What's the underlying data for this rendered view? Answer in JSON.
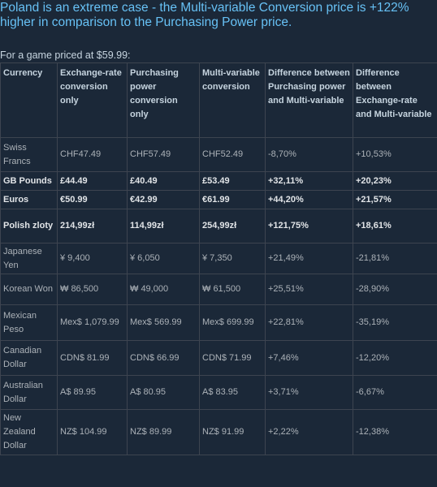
{
  "headline": "Poland is an extreme case - the Multi-variable Conversion price is +122% higher in comparison to the Purchasing Power price.",
  "subtitle": "For a game priced at $59.99:",
  "table": {
    "headers": [
      "Currency",
      "Exchange-rate conversion only",
      "Purchasing power conversion only",
      "Multi-variable conversion",
      "Difference between Purchasing power and Multi-variable",
      "Difference between Exchange-rate and Multi-variable"
    ],
    "rows": [
      {
        "bold": false,
        "cells": [
          "Swiss Francs",
          "CHF47.49",
          "CHF57.49",
          "CHF52.49",
          "-8,70%",
          "+10,53%"
        ]
      },
      {
        "bold": true,
        "cells": [
          "GB Pounds",
          "£44.49",
          "£40.49",
          "£53.49",
          "+32,11%",
          "+20,23%"
        ]
      },
      {
        "bold": true,
        "cells": [
          "Euros",
          "€50.99",
          "€42.99",
          "€61.99",
          "+44,20%",
          "+21,57%"
        ]
      },
      {
        "bold": true,
        "cells": [
          "Polish zloty",
          "214,99zł",
          "114,99zł",
          "254,99zł",
          "+121,75%",
          "+18,61%"
        ]
      },
      {
        "bold": false,
        "cells": [
          "Japanese Yen",
          "¥ 9,400",
          "¥ 6,050",
          "¥ 7,350",
          "+21,49%",
          "-21,81%"
        ]
      },
      {
        "bold": false,
        "cells": [
          "Korean Won",
          "₩ 86,500",
          "₩ 49,000",
          "₩ 61,500",
          "+25,51%",
          "-28,90%"
        ]
      },
      {
        "bold": false,
        "cells": [
          "Mexican Peso",
          "Mex$ 1,079.99",
          "Mex$ 569.99",
          "Mex$ 699.99",
          "+22,81%",
          "-35,19%"
        ]
      },
      {
        "bold": false,
        "cells": [
          "Canadian Dollar",
          "CDN$ 81.99",
          "CDN$ 66.99",
          "CDN$ 71.99",
          "+7,46%",
          "-12,20%"
        ]
      },
      {
        "bold": false,
        "cells": [
          "Australian Dollar",
          "A$ 89.95",
          "A$ 80.95",
          "A$ 83.95",
          "+3,71%",
          "-6,67%"
        ]
      },
      {
        "bold": false,
        "cells": [
          "New Zealand Dollar",
          "NZ$ 104.99",
          "NZ$ 89.99",
          "NZ$ 91.99",
          "+2,22%",
          "-12,38%"
        ]
      }
    ]
  },
  "colors": {
    "background": "#1b2838",
    "headline": "#67c1f5",
    "grid": "#3d4450",
    "text": "#acb2b8"
  }
}
